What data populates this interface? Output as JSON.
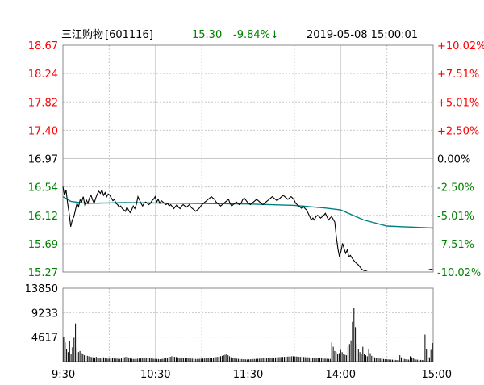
{
  "header": {
    "stock_name": "三江购物",
    "stock_code": "[601116]",
    "price": "15.30",
    "change": "-9.84%",
    "change_arrow": "↓",
    "datetime": "2019-05-08  15:00:01"
  },
  "colors": {
    "up": "#ff0000",
    "down": "#008000",
    "neutral": "#000000",
    "price_line": "#000000",
    "avg_line": "#008080",
    "grid": "#c8c8c8",
    "volume": "#000000"
  },
  "chart_data": [
    {
      "type": "line",
      "name": "price",
      "ylim": [
        15.27,
        18.67
      ],
      "y_ticks": [
        18.67,
        18.24,
        17.82,
        17.4,
        16.97,
        16.54,
        16.12,
        15.69,
        15.27
      ],
      "y_tick_labels": [
        "18.67",
        "18.24",
        "17.82",
        "17.40",
        "16.97",
        "16.54",
        "16.12",
        "15.69",
        "15.27"
      ],
      "pct_tick_labels": [
        "+10.02%",
        "+7.51%",
        "+5.01%",
        "+2.50%",
        "0.00%",
        "-2.50%",
        "-5.01%",
        "-7.51%",
        "-10.02%"
      ],
      "base": 16.97,
      "x_minutes": 240,
      "x_tick_labels": [
        "9:30",
        "10:30",
        "11:30",
        "14:00",
        "15:00"
      ],
      "series": [
        {
          "values": [
            16.55,
            16.42,
            16.5,
            16.3,
            16.15,
            15.95,
            16.05,
            16.1,
            16.2,
            16.3,
            16.25,
            16.35,
            16.32,
            16.4,
            16.28,
            16.35,
            16.3,
            16.38,
            16.42,
            16.35,
            16.3,
            16.38,
            16.44,
            16.48,
            16.45,
            16.5,
            16.42,
            16.46,
            16.4,
            16.44,
            16.42,
            16.38,
            16.34,
            16.36,
            16.3,
            16.28,
            16.24,
            16.26,
            16.22,
            16.2,
            16.18,
            16.24,
            16.2,
            16.16,
            16.2,
            16.26,
            16.22,
            16.28,
            16.4,
            16.35,
            16.3,
            16.26,
            16.3,
            16.32,
            16.3,
            16.28,
            16.3,
            16.34,
            16.36,
            16.4,
            16.32,
            16.36,
            16.3,
            16.34,
            16.32,
            16.3,
            16.28,
            16.3,
            16.26,
            16.28,
            16.25,
            16.22,
            16.25,
            16.28,
            16.24,
            16.22,
            16.26,
            16.28,
            16.26,
            16.24,
            16.26,
            16.28,
            16.24,
            16.22,
            16.2,
            16.18,
            16.2,
            16.22,
            16.25,
            16.28,
            16.3,
            16.32,
            16.34,
            16.36,
            16.38,
            16.4,
            16.38,
            16.36,
            16.32,
            16.3,
            16.28,
            16.26,
            16.28,
            16.3,
            16.32,
            16.34,
            16.36,
            16.3,
            16.26,
            16.28,
            16.3,
            16.32,
            16.3,
            16.28,
            16.3,
            16.35,
            16.38,
            16.35,
            16.32,
            16.3,
            16.28,
            16.3,
            16.32,
            16.34,
            16.36,
            16.34,
            16.32,
            16.3,
            16.28,
            16.3,
            16.32,
            16.34,
            16.36,
            16.38,
            16.4,
            16.38,
            16.36,
            16.34,
            16.36,
            16.38,
            16.4,
            16.42,
            16.4,
            16.38,
            16.36,
            16.38,
            16.4,
            16.38,
            16.35,
            16.3,
            16.28,
            16.26,
            16.24,
            16.22,
            16.25,
            16.22,
            16.2,
            16.15,
            16.1,
            16.05,
            16.08,
            16.05,
            16.1,
            16.12,
            16.1,
            16.08,
            16.1,
            16.12,
            16.15,
            16.1,
            16.05,
            16.08,
            16.1,
            16.06,
            16.02,
            15.8,
            15.62,
            15.5,
            15.58,
            15.7,
            15.62,
            15.55,
            15.6,
            15.5,
            15.52,
            15.48,
            15.45,
            15.42,
            15.4,
            15.38,
            15.35,
            15.32,
            15.3,
            15.29,
            15.29,
            15.3,
            15.3,
            15.3,
            15.3,
            15.3,
            15.3,
            15.3,
            15.3,
            15.3,
            15.3,
            15.3,
            15.3,
            15.3,
            15.3,
            15.3,
            15.3,
            15.3,
            15.3,
            15.3,
            15.3,
            15.3,
            15.3,
            15.3,
            15.3,
            15.3,
            15.3,
            15.3,
            15.3,
            15.3,
            15.3,
            15.3,
            15.3,
            15.3,
            15.3,
            15.3,
            15.3,
            15.3,
            15.3,
            15.3,
            15.3,
            15.31,
            15.31,
            15.3
          ]
        }
      ]
    },
    {
      "type": "line",
      "name": "average",
      "ylim": [
        15.27,
        18.67
      ],
      "x_minutes": 240,
      "points": [
        [
          0,
          16.4
        ],
        [
          5,
          16.33
        ],
        [
          15,
          16.3
        ],
        [
          40,
          16.31
        ],
        [
          80,
          16.3
        ],
        [
          120,
          16.29
        ],
        [
          150,
          16.27
        ],
        [
          170,
          16.23
        ],
        [
          180,
          16.2
        ],
        [
          195,
          16.05
        ],
        [
          210,
          15.96
        ],
        [
          240,
          15.93
        ]
      ]
    },
    {
      "type": "bar",
      "name": "volume",
      "ylim": [
        0,
        13850
      ],
      "y_tick_labels": [
        "13850",
        "9233",
        "4617"
      ],
      "x_minutes": 240,
      "values": [
        4600,
        3600,
        2400,
        1800,
        3800,
        1500,
        2700,
        4500,
        7200,
        2500,
        1800,
        2000,
        1600,
        1400,
        1200,
        1300,
        1100,
        1000,
        900,
        850,
        800,
        750,
        900,
        700,
        650,
        600,
        700,
        800,
        650,
        600,
        550,
        600,
        700,
        650,
        600,
        580,
        560,
        540,
        520,
        600,
        700,
        800,
        900,
        850,
        700,
        600,
        550,
        500,
        520,
        540,
        560,
        580,
        600,
        620,
        650,
        700,
        750,
        800,
        700,
        600,
        560,
        540,
        520,
        500,
        480,
        460,
        500,
        540,
        580,
        620,
        700,
        800,
        900,
        1000,
        950,
        900,
        850,
        800,
        760,
        720,
        700,
        680,
        660,
        640,
        620,
        600,
        580,
        560,
        540,
        520,
        500,
        520,
        540,
        560,
        580,
        600,
        620,
        640,
        660,
        680,
        700,
        750,
        800,
        850,
        900,
        950,
        1000,
        1100,
        1200,
        1300,
        1400,
        1200,
        1000,
        800,
        700,
        650,
        600,
        560,
        520,
        500,
        480,
        460,
        440,
        420,
        400,
        420,
        440,
        460,
        480,
        500,
        520,
        540,
        560,
        580,
        600,
        620,
        640,
        660,
        680,
        700,
        720,
        740,
        760,
        780,
        800,
        820,
        840,
        860,
        880,
        900,
        920,
        940,
        960,
        980,
        1000,
        1000,
        980,
        960,
        940,
        920,
        900,
        880,
        860,
        840,
        820,
        800,
        780,
        760,
        740,
        720,
        700,
        680,
        660,
        640,
        620,
        600,
        580,
        560,
        540,
        520,
        500,
        3600,
        2800,
        2000,
        1800,
        1500,
        1600,
        2200,
        1800,
        1400,
        1300,
        1200,
        2800,
        3300,
        4000,
        7500,
        10200,
        6500,
        3300,
        2400,
        1800,
        1500,
        2800,
        1400,
        1200,
        1000,
        2400,
        1600,
        1100,
        900,
        800,
        700,
        650,
        600,
        560,
        520,
        480,
        460,
        440,
        420,
        400,
        380,
        360,
        340,
        320,
        300,
        280,
        1200,
        800,
        600,
        500,
        450,
        400,
        380,
        1000,
        800,
        650,
        500,
        400,
        360,
        340,
        320,
        300,
        280,
        5100,
        2400,
        900,
        800,
        2200,
        3500
      ]
    }
  ]
}
